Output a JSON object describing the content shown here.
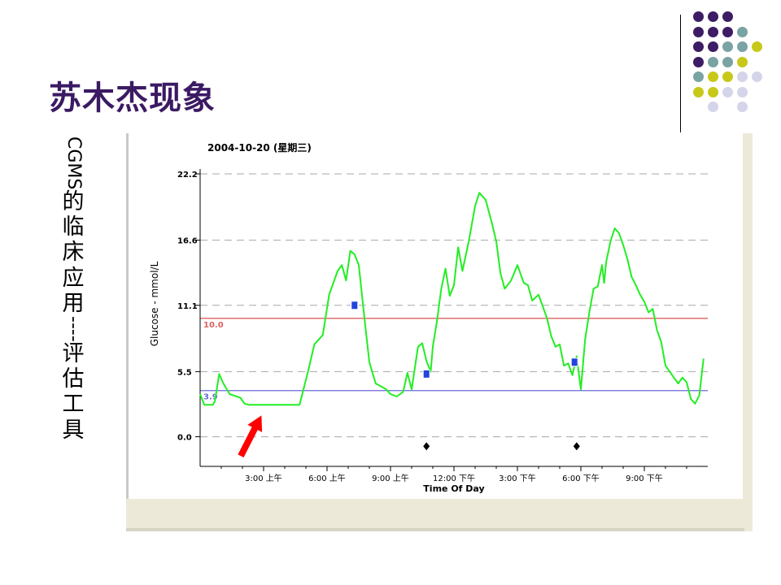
{
  "slide": {
    "title": "苏木杰现象",
    "side_latin": "CGMS",
    "side_cjk": "的临床应用",
    "side_dash": "----",
    "side_cjk2": "评估工具"
  },
  "colors": {
    "title": "#3b1a63",
    "dot_purple": "#3d1c65",
    "dot_teal": "#7aa3a3",
    "dot_yellow": "#c8c81a",
    "dot_lilac": "#d4d4ea",
    "glucose_line": "#22ee22",
    "high_limit": "#e06060",
    "low_limit": "#6a6ad8",
    "arrow": "#ff0000"
  },
  "chart_data": {
    "type": "line",
    "title": "2004-10-20 (星期三)",
    "xlabel": "Time Of Day",
    "ylabel": "Glucose - mmol/L",
    "xlim": [
      0,
      24
    ],
    "ylim": [
      -2.5,
      22.2
    ],
    "y_ticks": [
      {
        "value": 22.2,
        "label": "22.2"
      },
      {
        "value": 16.6,
        "label": "16.6"
      },
      {
        "value": 11.1,
        "label": "11.1"
      },
      {
        "value": 5.5,
        "label": "5.5"
      },
      {
        "value": 0.0,
        "label": "0.0"
      }
    ],
    "x_ticks": [
      {
        "value": 3,
        "label": "3:00 上午"
      },
      {
        "value": 6,
        "label": "6:00 上午"
      },
      {
        "value": 9,
        "label": "9:00 上午"
      },
      {
        "value": 12,
        "label": "12:00 下午"
      },
      {
        "value": 15,
        "label": "3:00 下午"
      },
      {
        "value": 18,
        "label": "6:00 下午"
      },
      {
        "value": 21,
        "label": "9:00 下午"
      }
    ],
    "limits": [
      {
        "value": 10.0,
        "label": "10.0",
        "color": "#e06060"
      },
      {
        "value": 3.9,
        "label": "3.9",
        "color": "#6a6ad8"
      }
    ],
    "grid": "dashed horizontal",
    "series": [
      {
        "color": "#22ee22",
        "points": [
          [
            0.0,
            3.6
          ],
          [
            0.2,
            2.7
          ],
          [
            0.6,
            2.7
          ],
          [
            0.7,
            3.0
          ],
          [
            0.9,
            5.3
          ],
          [
            1.1,
            4.5
          ],
          [
            1.4,
            3.6
          ],
          [
            1.9,
            3.3
          ],
          [
            2.1,
            2.8
          ],
          [
            2.3,
            2.7
          ],
          [
            4.0,
            2.7
          ],
          [
            4.7,
            2.7
          ],
          [
            5.1,
            5.5
          ],
          [
            5.4,
            7.8
          ],
          [
            5.8,
            8.6
          ],
          [
            6.1,
            12.0
          ],
          [
            6.5,
            14.0
          ],
          [
            6.7,
            14.5
          ],
          [
            6.9,
            13.2
          ],
          [
            7.1,
            15.7
          ],
          [
            7.3,
            15.4
          ],
          [
            7.5,
            14.5
          ],
          [
            7.8,
            9.5
          ],
          [
            8.0,
            6.3
          ],
          [
            8.3,
            4.5
          ],
          [
            8.6,
            4.2
          ],
          [
            8.8,
            4.0
          ],
          [
            9.0,
            3.6
          ],
          [
            9.3,
            3.4
          ],
          [
            9.6,
            3.8
          ],
          [
            9.8,
            5.4
          ],
          [
            10.0,
            4.0
          ],
          [
            10.3,
            7.6
          ],
          [
            10.5,
            7.9
          ],
          [
            10.7,
            6.4
          ],
          [
            10.9,
            5.5
          ],
          [
            11.0,
            7.6
          ],
          [
            11.2,
            9.8
          ],
          [
            11.4,
            12.5
          ],
          [
            11.6,
            14.2
          ],
          [
            11.8,
            11.9
          ],
          [
            12.0,
            12.8
          ],
          [
            12.2,
            16.0
          ],
          [
            12.4,
            14.0
          ],
          [
            12.7,
            16.5
          ],
          [
            13.0,
            19.5
          ],
          [
            13.2,
            20.6
          ],
          [
            13.5,
            20.0
          ],
          [
            13.8,
            18.0
          ],
          [
            14.0,
            16.5
          ],
          [
            14.2,
            13.8
          ],
          [
            14.4,
            12.5
          ],
          [
            14.7,
            13.2
          ],
          [
            15.0,
            14.5
          ],
          [
            15.3,
            13.0
          ],
          [
            15.5,
            12.8
          ],
          [
            15.7,
            11.5
          ],
          [
            16.0,
            12.0
          ],
          [
            16.2,
            11.0
          ],
          [
            16.4,
            10.0
          ],
          [
            16.6,
            8.5
          ],
          [
            16.8,
            7.6
          ],
          [
            17.0,
            7.8
          ],
          [
            17.2,
            6.0
          ],
          [
            17.4,
            6.2
          ],
          [
            17.6,
            5.2
          ],
          [
            17.8,
            6.8
          ],
          [
            18.0,
            4.0
          ],
          [
            18.2,
            8.2
          ],
          [
            18.4,
            10.5
          ],
          [
            18.6,
            12.5
          ],
          [
            18.8,
            12.7
          ],
          [
            19.0,
            14.5
          ],
          [
            19.1,
            13.0
          ],
          [
            19.2,
            14.8
          ],
          [
            19.4,
            16.5
          ],
          [
            19.6,
            17.6
          ],
          [
            19.8,
            17.2
          ],
          [
            20.0,
            16.2
          ],
          [
            20.2,
            15.0
          ],
          [
            20.4,
            13.5
          ],
          [
            20.6,
            12.8
          ],
          [
            20.8,
            12.0
          ],
          [
            21.0,
            11.4
          ],
          [
            21.2,
            10.5
          ],
          [
            21.4,
            10.8
          ],
          [
            21.6,
            9.0
          ],
          [
            21.8,
            8.0
          ],
          [
            22.0,
            6.0
          ],
          [
            22.2,
            5.5
          ],
          [
            22.4,
            5.0
          ],
          [
            22.6,
            4.5
          ],
          [
            22.8,
            5.0
          ],
          [
            23.0,
            4.6
          ],
          [
            23.2,
            3.2
          ],
          [
            23.4,
            2.8
          ],
          [
            23.6,
            3.5
          ],
          [
            23.8,
            6.6
          ]
        ]
      }
    ],
    "markers": [
      {
        "x": 7.3,
        "y": 11.1
      },
      {
        "x": 10.7,
        "y": 5.3
      },
      {
        "x": 17.7,
        "y": 6.3
      }
    ],
    "event_markers": [
      {
        "x": 10.7,
        "y": -0.8
      },
      {
        "x": 17.8,
        "y": -0.8
      }
    ],
    "annotation_arrow": {
      "x": 2.9,
      "y": 1.8
    }
  }
}
